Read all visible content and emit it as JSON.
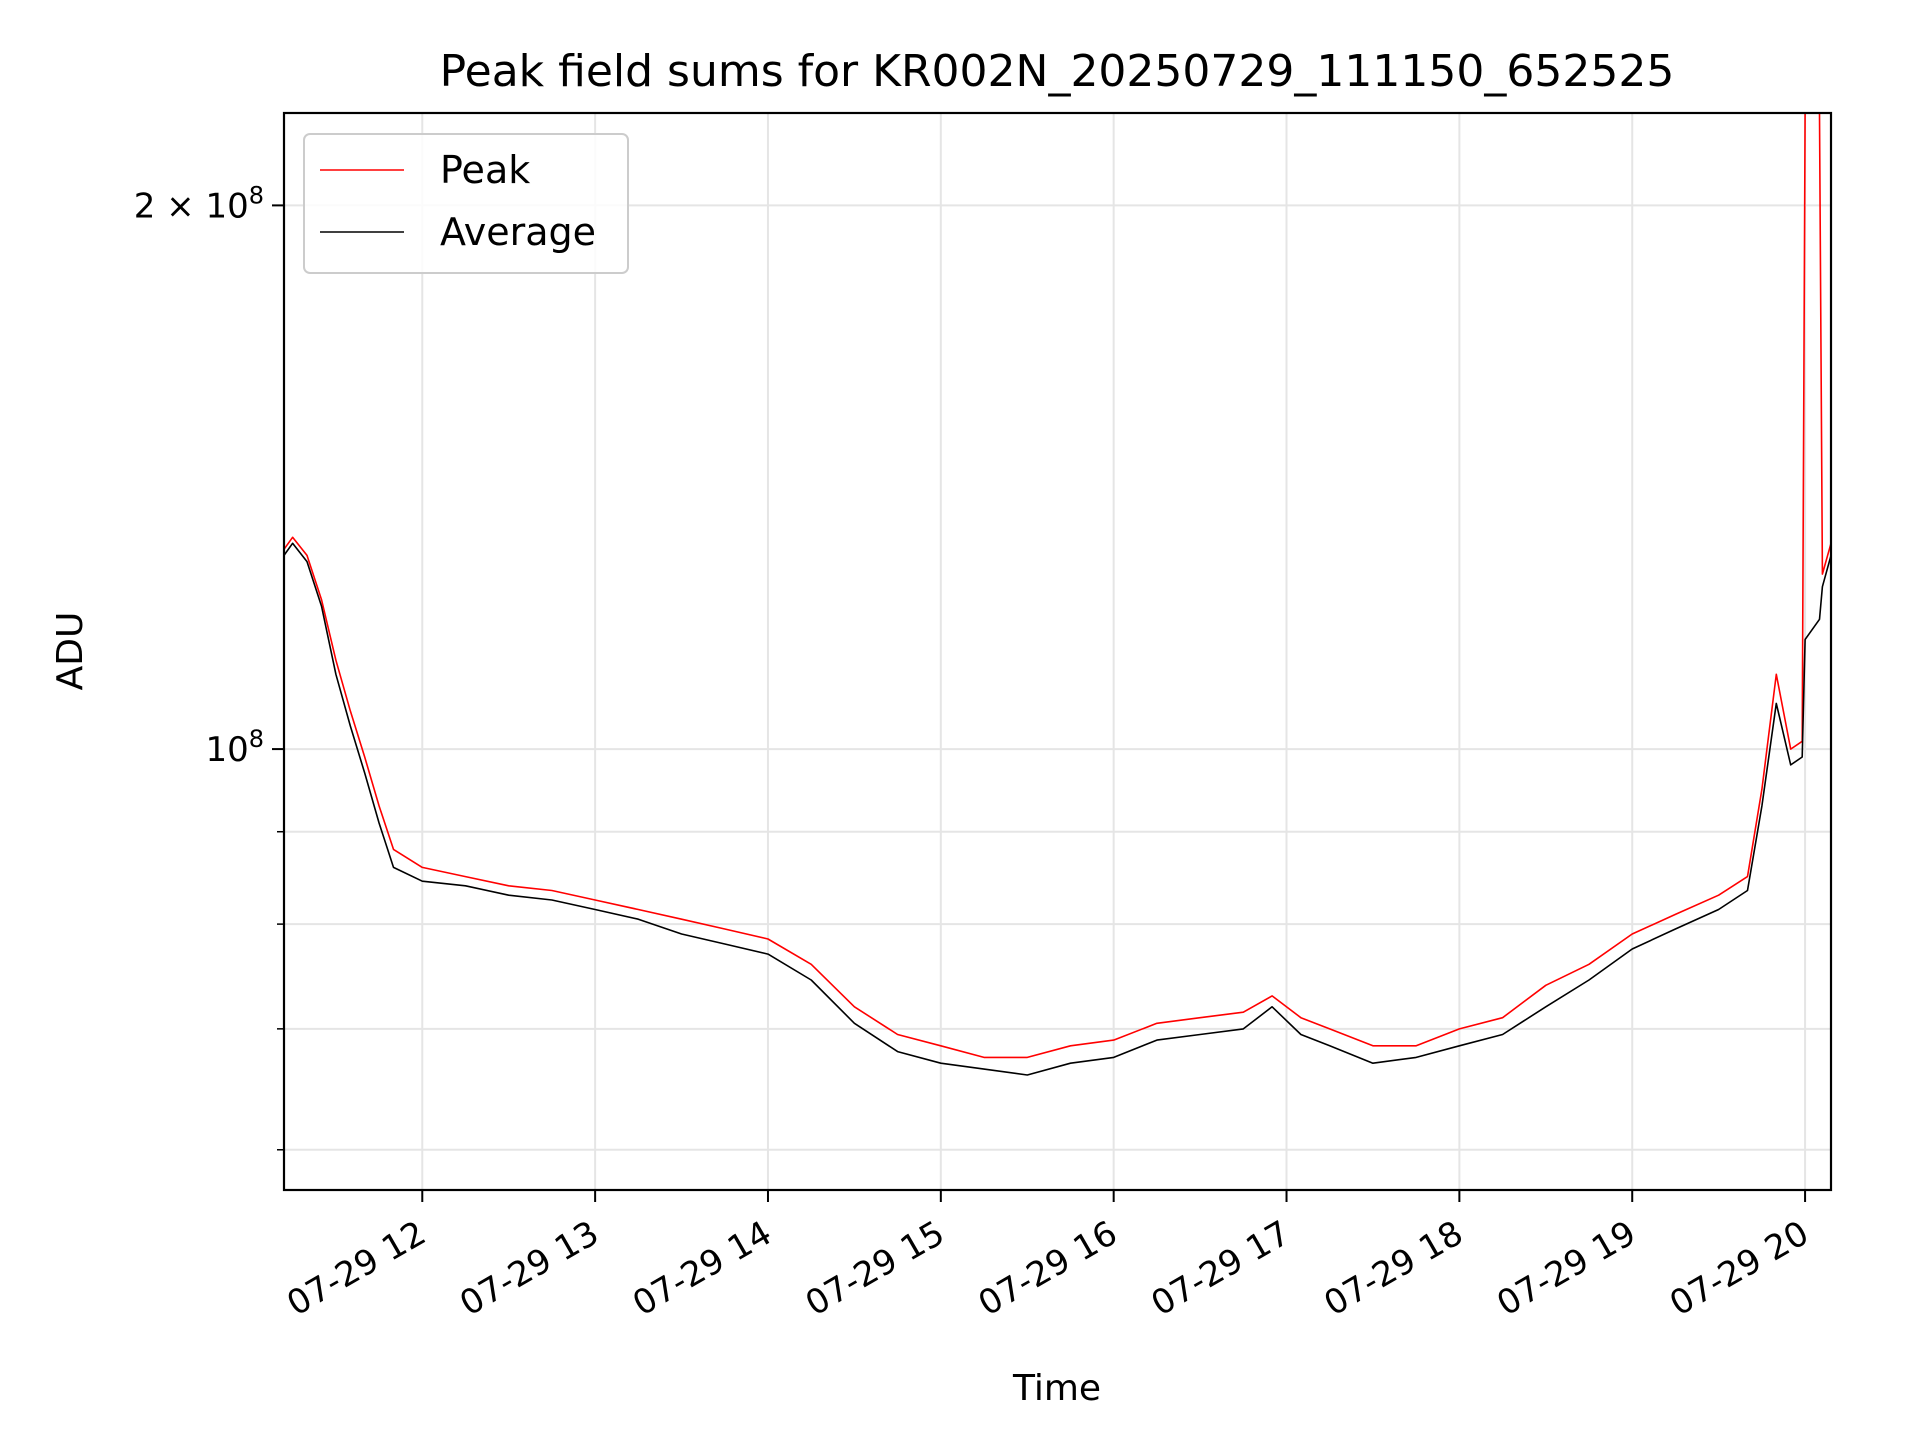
{
  "chart_data": {
    "type": "line",
    "title": "Peak field sums for KR002N_20250729_111150_652525",
    "xlabel": "Time",
    "ylabel": "ADU",
    "y_scale": "log",
    "ylim": [
      57000000,
      225000000
    ],
    "xlim": [
      "2025-07-29 11:12",
      "2025-07-29 20:09"
    ],
    "grid": true,
    "legend_position": "upper left",
    "x_ticks": [
      {
        "value": "2025-07-29 12:00",
        "label": "07-29 12"
      },
      {
        "value": "2025-07-29 13:00",
        "label": "07-29 13"
      },
      {
        "value": "2025-07-29 14:00",
        "label": "07-29 14"
      },
      {
        "value": "2025-07-29 15:00",
        "label": "07-29 15"
      },
      {
        "value": "2025-07-29 16:00",
        "label": "07-29 16"
      },
      {
        "value": "2025-07-29 17:00",
        "label": "07-29 17"
      },
      {
        "value": "2025-07-29 18:00",
        "label": "07-29 18"
      },
      {
        "value": "2025-07-29 19:00",
        "label": "07-29 19"
      },
      {
        "value": "2025-07-29 20:00",
        "label": "07-29 20"
      }
    ],
    "y_ticks_major": [
      {
        "value": 100000000,
        "base": "10",
        "exp": "8",
        "mult": ""
      },
      {
        "value": 200000000,
        "base": "10",
        "exp": "8",
        "mult": "2 × "
      }
    ],
    "y_ticks_minor": [
      60000000,
      70000000,
      80000000,
      90000000
    ],
    "series": [
      {
        "name": "Peak",
        "color": "#ff0000",
        "x": [
          "2025-07-29 11:12",
          "2025-07-29 11:15",
          "2025-07-29 11:20",
          "2025-07-29 11:25",
          "2025-07-29 11:30",
          "2025-07-29 11:35",
          "2025-07-29 11:40",
          "2025-07-29 11:45",
          "2025-07-29 11:50",
          "2025-07-29 12:00",
          "2025-07-29 12:15",
          "2025-07-29 12:30",
          "2025-07-29 12:45",
          "2025-07-29 13:00",
          "2025-07-29 13:15",
          "2025-07-29 13:30",
          "2025-07-29 13:45",
          "2025-07-29 14:00",
          "2025-07-29 14:15",
          "2025-07-29 14:30",
          "2025-07-29 14:45",
          "2025-07-29 15:00",
          "2025-07-29 15:15",
          "2025-07-29 15:30",
          "2025-07-29 15:45",
          "2025-07-29 16:00",
          "2025-07-29 16:15",
          "2025-07-29 16:30",
          "2025-07-29 16:45",
          "2025-07-29 16:55",
          "2025-07-29 17:05",
          "2025-07-29 17:15",
          "2025-07-29 17:30",
          "2025-07-29 17:45",
          "2025-07-29 18:00",
          "2025-07-29 18:15",
          "2025-07-29 18:30",
          "2025-07-29 18:45",
          "2025-07-29 19:00",
          "2025-07-29 19:15",
          "2025-07-29 19:30",
          "2025-07-29 19:40",
          "2025-07-29 19:45",
          "2025-07-29 19:50",
          "2025-07-29 19:55",
          "2025-07-29 19:59",
          "2025-07-29 20:00",
          "2025-07-29 20:05",
          "2025-07-29 20:06",
          "2025-07-29 20:09"
        ],
        "y": [
          129000000,
          131000000,
          128000000,
          121000000,
          112000000,
          105000000,
          99000000,
          93000000,
          88000000,
          86000000,
          85000000,
          84000000,
          83500000,
          82500000,
          81500000,
          80500000,
          79500000,
          78500000,
          76000000,
          72000000,
          69500000,
          68500000,
          67500000,
          67500000,
          68500000,
          69000000,
          70500000,
          71000000,
          71500000,
          73000000,
          71000000,
          70000000,
          68500000,
          68500000,
          70000000,
          71000000,
          74000000,
          76000000,
          79000000,
          81000000,
          83000000,
          85000000,
          95000000,
          110000000,
          100000000,
          101000000,
          225000000,
          225000000,
          125000000,
          130000000
        ]
      },
      {
        "name": "Average",
        "color": "#000000",
        "x": [
          "2025-07-29 11:12",
          "2025-07-29 11:15",
          "2025-07-29 11:20",
          "2025-07-29 11:25",
          "2025-07-29 11:30",
          "2025-07-29 11:35",
          "2025-07-29 11:40",
          "2025-07-29 11:45",
          "2025-07-29 11:50",
          "2025-07-29 12:00",
          "2025-07-29 12:15",
          "2025-07-29 12:30",
          "2025-07-29 12:45",
          "2025-07-29 13:00",
          "2025-07-29 13:15",
          "2025-07-29 13:30",
          "2025-07-29 13:45",
          "2025-07-29 14:00",
          "2025-07-29 14:15",
          "2025-07-29 14:30",
          "2025-07-29 14:45",
          "2025-07-29 15:00",
          "2025-07-29 15:15",
          "2025-07-29 15:30",
          "2025-07-29 15:45",
          "2025-07-29 16:00",
          "2025-07-29 16:15",
          "2025-07-29 16:30",
          "2025-07-29 16:45",
          "2025-07-29 16:55",
          "2025-07-29 17:05",
          "2025-07-29 17:15",
          "2025-07-29 17:30",
          "2025-07-29 17:45",
          "2025-07-29 18:00",
          "2025-07-29 18:15",
          "2025-07-29 18:30",
          "2025-07-29 18:45",
          "2025-07-29 19:00",
          "2025-07-29 19:15",
          "2025-07-29 19:30",
          "2025-07-29 19:40",
          "2025-07-29 19:45",
          "2025-07-29 19:50",
          "2025-07-29 19:55",
          "2025-07-29 19:59",
          "2025-07-29 20:00",
          "2025-07-29 20:05",
          "2025-07-29 20:06",
          "2025-07-29 20:09"
        ],
        "y": [
          128000000,
          130000000,
          127000000,
          120000000,
          110000000,
          103000000,
          97000000,
          91000000,
          86000000,
          84500000,
          84000000,
          83000000,
          82500000,
          81500000,
          80500000,
          79000000,
          78000000,
          77000000,
          74500000,
          70500000,
          68000000,
          67000000,
          66500000,
          66000000,
          67000000,
          67500000,
          69000000,
          69500000,
          70000000,
          72000000,
          69500000,
          68500000,
          67000000,
          67500000,
          68500000,
          69500000,
          72000000,
          74500000,
          77500000,
          79500000,
          81500000,
          83500000,
          93000000,
          106000000,
          98000000,
          99000000,
          115000000,
          118000000,
          123000000,
          128000000
        ]
      }
    ]
  }
}
